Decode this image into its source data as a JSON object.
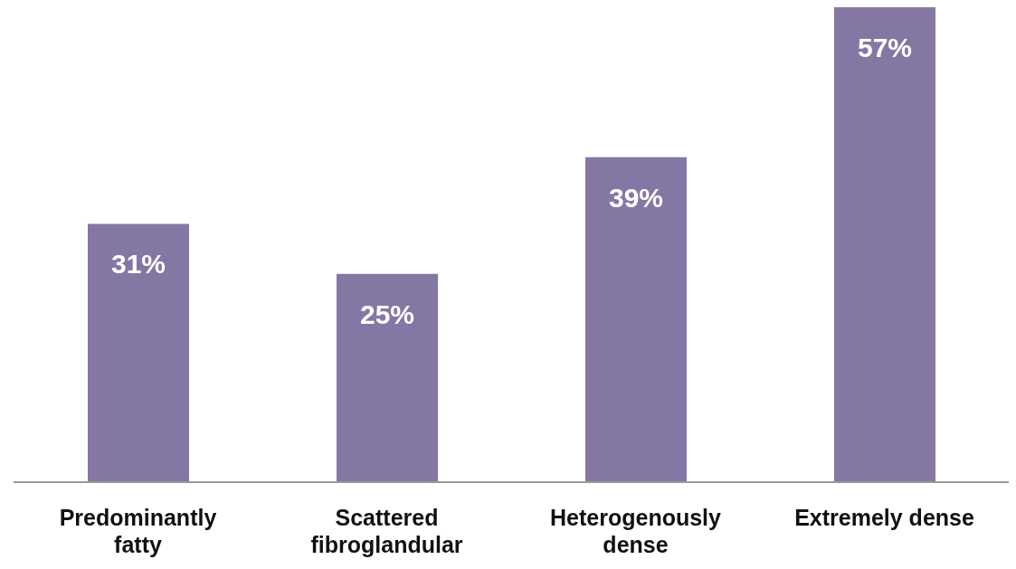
{
  "chart_data": {
    "type": "bar",
    "categories": [
      "Predominantly fatty",
      "Scattered fibroglandular",
      "Heterogenously dense",
      "Extremely dense"
    ],
    "values": [
      31,
      25,
      39,
      57
    ],
    "value_labels": [
      "31%",
      "25%",
      "39%",
      "57%"
    ],
    "color": "#8577a4"
  }
}
